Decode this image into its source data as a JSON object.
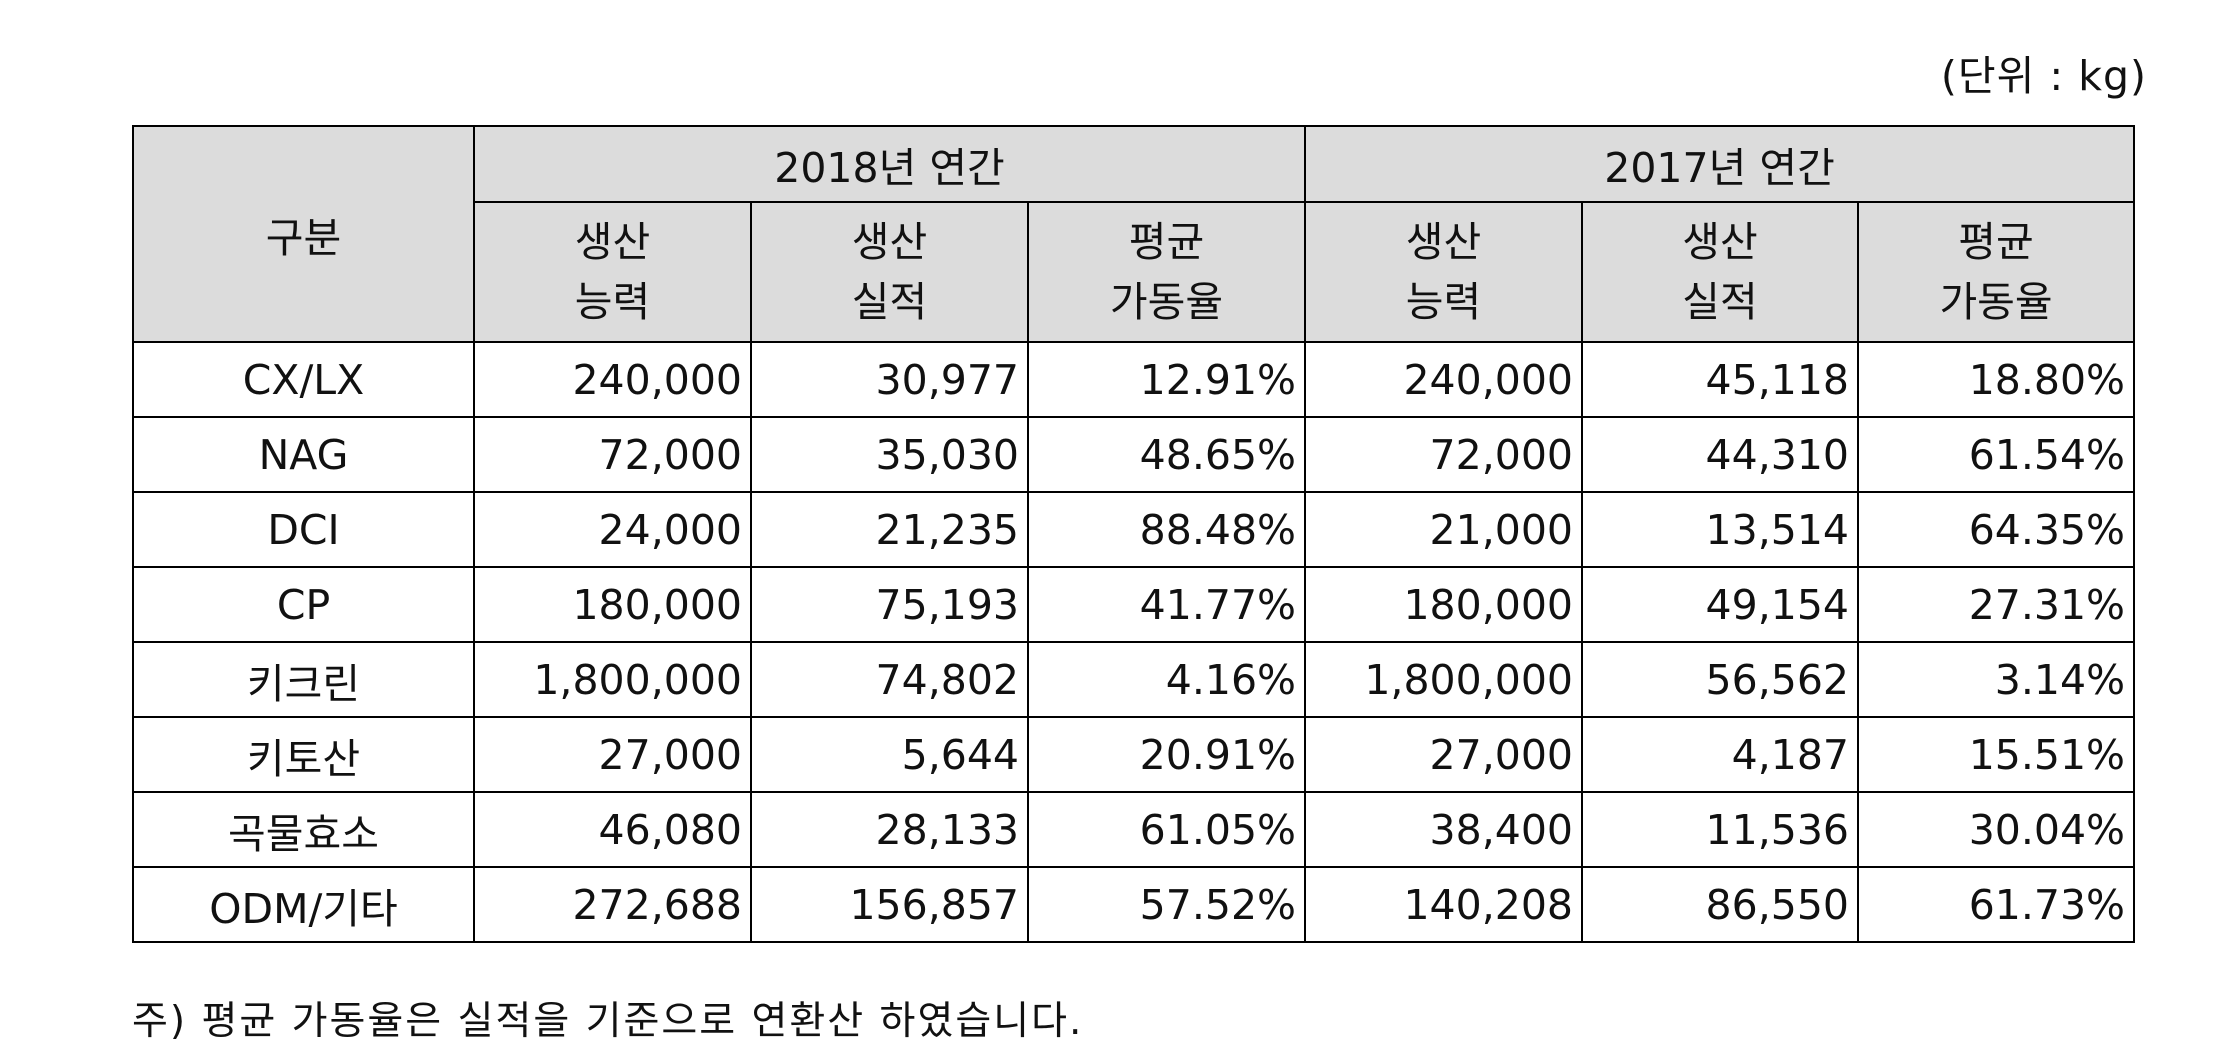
{
  "unit": "(단위 : kg)",
  "header": {
    "category": "구분",
    "year_2018": "2018년 연간",
    "year_2017": "2017년 연간",
    "capacity": [
      "생산",
      "능력"
    ],
    "production": [
      "생산",
      "실적"
    ],
    "utilization": [
      "평균",
      "가동율"
    ]
  },
  "rows": [
    {
      "name": "CX/LX",
      "cap18": "240,000",
      "prod18": "30,977",
      "util18": "12.91%",
      "cap17": "240,000",
      "prod17": "45,118",
      "util17": "18.80%"
    },
    {
      "name": "NAG",
      "cap18": "72,000",
      "prod18": "35,030",
      "util18": "48.65%",
      "cap17": "72,000",
      "prod17": "44,310",
      "util17": "61.54%"
    },
    {
      "name": "DCI",
      "cap18": "24,000",
      "prod18": "21,235",
      "util18": "88.48%",
      "cap17": "21,000",
      "prod17": "13,514",
      "util17": "64.35%"
    },
    {
      "name": "CP",
      "cap18": "180,000",
      "prod18": "75,193",
      "util18": "41.77%",
      "cap17": "180,000",
      "prod17": "49,154",
      "util17": "27.31%"
    },
    {
      "name": "키크린",
      "cap18": "1,800,000",
      "prod18": "74,802",
      "util18": "4.16%",
      "cap17": "1,800,000",
      "prod17": "56,562",
      "util17": "3.14%"
    },
    {
      "name": "키토산",
      "cap18": "27,000",
      "prod18": "5,644",
      "util18": "20.91%",
      "cap17": "27,000",
      "prod17": "4,187",
      "util17": "15.51%"
    },
    {
      "name": "곡물효소",
      "cap18": "46,080",
      "prod18": "28,133",
      "util18": "61.05%",
      "cap17": "38,400",
      "prod17": "11,536",
      "util17": "30.04%"
    },
    {
      "name": "ODM/기타",
      "cap18": "272,688",
      "prod18": "156,857",
      "util18": "57.52%",
      "cap17": "140,208",
      "prod17": "86,550",
      "util17": "61.73%"
    }
  ],
  "footnote": "주) 평균 가동율은 실적을 기준으로 연환산 하였습니다."
}
